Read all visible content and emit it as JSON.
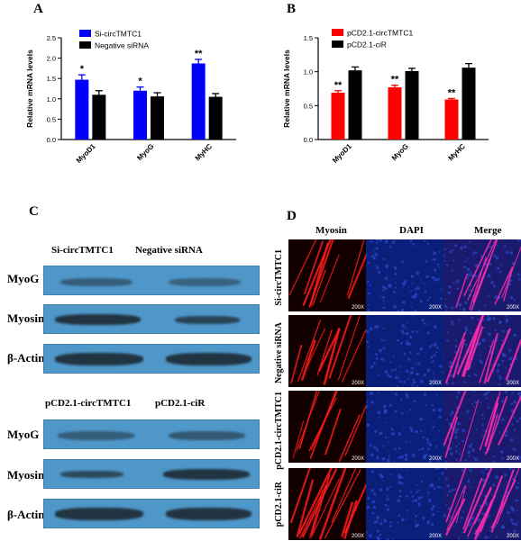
{
  "panels": {
    "A": {
      "letter": "A"
    },
    "B": {
      "letter": "B"
    },
    "C": {
      "letter": "C"
    },
    "D": {
      "letter": "D"
    }
  },
  "chart_data": [
    {
      "panel": "A",
      "type": "bar",
      "ylabel": "Relative mRNA levels",
      "ylim": [
        0,
        2.5
      ],
      "yticks": [
        "0.0",
        "0.5",
        "1.0",
        "1.5",
        "2.0",
        "2.5"
      ],
      "categories": [
        "MyoD1",
        "MyoG",
        "MyHC"
      ],
      "series": [
        {
          "name": "Si-circTMTC1",
          "color": "#0000ff",
          "values": [
            1.47,
            1.2,
            1.87
          ],
          "errors": [
            0.12,
            0.09,
            0.1
          ],
          "sig": [
            "*",
            "*",
            "**"
          ]
        },
        {
          "name": "Negative siRNA",
          "color": "#000000",
          "values": [
            1.1,
            1.06,
            1.05
          ],
          "errors": [
            0.1,
            0.09,
            0.08
          ],
          "sig": [
            "",
            "",
            ""
          ]
        }
      ]
    },
    {
      "panel": "B",
      "type": "bar",
      "ylabel": "Relative mRNA levels",
      "ylim": [
        0,
        1.5
      ],
      "yticks": [
        "0.0",
        "0.5",
        "1.0",
        "1.5"
      ],
      "categories": [
        "MyoD1",
        "MyoG",
        "MyHC"
      ],
      "series": [
        {
          "name": "pCD2.1-circTMTC1",
          "color": "#ff0000",
          "values": [
            0.69,
            0.77,
            0.59
          ],
          "errors": [
            0.03,
            0.03,
            0.015
          ],
          "sig": [
            "**",
            "**",
            "**"
          ]
        },
        {
          "name": "pCD2.1-ciR",
          "color": "#000000",
          "values": [
            1.02,
            1.01,
            1.06
          ],
          "errors": [
            0.05,
            0.04,
            0.06
          ],
          "sig": [
            "",
            "",
            ""
          ]
        }
      ]
    }
  ],
  "blots": {
    "top": {
      "col1": "Si-circTMTC1",
      "col2": "Negative siRNA",
      "rows": [
        "MyoG",
        "Myosin",
        "β-Actin"
      ]
    },
    "bottom": {
      "col1": "pCD2.1-circTMTC1",
      "col2": "pCD2.1-ciR",
      "rows": [
        "MyoG",
        "Myosin",
        "β-Actin"
      ]
    }
  },
  "micro": {
    "columns": [
      "Myosin",
      "DAPI",
      "Merge"
    ],
    "rows": [
      "Si-circTMTC1",
      "Negative siRNA",
      "pCD2.1-circTMTC1",
      "pCD2.1-ciR"
    ],
    "magnification": "200X"
  }
}
